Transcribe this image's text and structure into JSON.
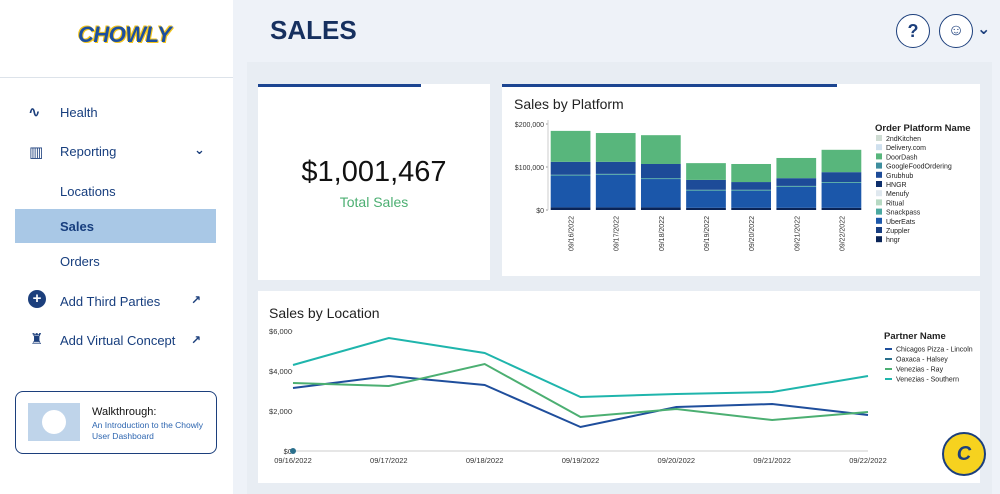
{
  "sidebar": {
    "logo": "CHOWLY",
    "nav": [
      {
        "label": "Health"
      },
      {
        "label": "Reporting"
      },
      {
        "label": "Locations"
      },
      {
        "label": "Sales"
      },
      {
        "label": "Orders"
      },
      {
        "label": "Add Third Parties"
      },
      {
        "label": "Add Virtual Concept"
      }
    ],
    "walkthrough": {
      "title": "Walkthrough:",
      "link": "An Introduction to the Chowly User Dashboard"
    }
  },
  "header": {
    "title": "SALES",
    "help": "?"
  },
  "kpi": {
    "value": "$1,001,467",
    "label": "Total Sales"
  },
  "assistant_badge": "C",
  "chart_data": [
    {
      "type": "bar",
      "stacked": true,
      "title": "Sales by Platform",
      "legend_title": "Order Platform Name",
      "categories": [
        "09/16/2022",
        "09/17/2022",
        "09/18/2022",
        "09/19/2022",
        "09/20/2022",
        "09/21/2022",
        "09/22/2022"
      ],
      "ylim": [
        0,
        200000
      ],
      "yticks": [
        {
          "value": 0,
          "label": "$0"
        },
        {
          "value": 100000,
          "label": "$100,000"
        },
        {
          "value": 200000,
          "label": "$200,000"
        }
      ],
      "series": [
        {
          "name": "2ndKitchen",
          "color": "#cfdcd3",
          "values": [
            0,
            0,
            0,
            0,
            0,
            0,
            0
          ]
        },
        {
          "name": "Delivery.com",
          "color": "#cfe0ee",
          "values": [
            0,
            0,
            0,
            0,
            0,
            0,
            0
          ]
        },
        {
          "name": "DoorDash",
          "color": "#58b67c",
          "values": [
            72000,
            67000,
            67000,
            39000,
            42000,
            47000,
            52000
          ]
        },
        {
          "name": "GoogleFoodOrdering",
          "color": "#3e8e9e",
          "values": [
            0,
            0,
            0,
            0,
            0,
            0,
            0
          ]
        },
        {
          "name": "Grubhub",
          "color": "#1d4b98",
          "values": [
            30000,
            28000,
            33000,
            23000,
            18000,
            18000,
            23000
          ]
        },
        {
          "name": "HNGR",
          "color": "#0e2f6c",
          "values": [
            0,
            0,
            0,
            0,
            0,
            0,
            0
          ]
        },
        {
          "name": "Menufy",
          "color": "#dfe8ef",
          "values": [
            0,
            0,
            0,
            0,
            0,
            0,
            0
          ]
        },
        {
          "name": "Ritual",
          "color": "#b6d9c3",
          "values": [
            0,
            0,
            0,
            0,
            0,
            0,
            0
          ]
        },
        {
          "name": "Snackpass",
          "color": "#4aa8a0",
          "values": [
            2000,
            2000,
            2000,
            2000,
            2000,
            2000,
            2000
          ]
        },
        {
          "name": "UberEats",
          "color": "#1b57aa",
          "values": [
            74000,
            76000,
            66000,
            40000,
            40000,
            49000,
            58000
          ]
        },
        {
          "name": "Zuppler",
          "color": "#173d80",
          "values": [
            0,
            0,
            0,
            0,
            0,
            0,
            0
          ]
        },
        {
          "name": "hngr",
          "color": "#0a2457",
          "values": [
            6000,
            6000,
            6000,
            5000,
            5000,
            5000,
            5000
          ]
        }
      ]
    },
    {
      "type": "line",
      "title": "Sales by Location",
      "legend_title": "Partner Name",
      "grid": false,
      "categories": [
        "09/16/2022",
        "09/17/2022",
        "09/18/2022",
        "09/19/2022",
        "09/20/2022",
        "09/21/2022",
        "09/22/2022"
      ],
      "ylim": [
        0,
        6000
      ],
      "yticks": [
        {
          "value": 0,
          "label": "$0"
        },
        {
          "value": 2000,
          "label": "$2,000"
        },
        {
          "value": 4000,
          "label": "$4,000"
        },
        {
          "value": 6000,
          "label": "$6,000"
        }
      ],
      "series": [
        {
          "name": "Chicagos Pizza - Lincoln",
          "color": "#1f4e9c",
          "values": [
            3150,
            3750,
            3300,
            1200,
            2200,
            2350,
            1800
          ]
        },
        {
          "name": "Oaxaca - Halsey",
          "color": "#2a6f8c",
          "values": [
            0,
            null,
            null,
            null,
            null,
            null,
            null
          ]
        },
        {
          "name": "Venezias - Ray",
          "color": "#4caf72",
          "values": [
            3400,
            3250,
            4350,
            1700,
            2100,
            1550,
            1950
          ]
        },
        {
          "name": "Venezias - Southern",
          "color": "#1fb5ac",
          "values": [
            4300,
            5650,
            4900,
            2700,
            2850,
            2950,
            3750
          ]
        }
      ]
    }
  ]
}
